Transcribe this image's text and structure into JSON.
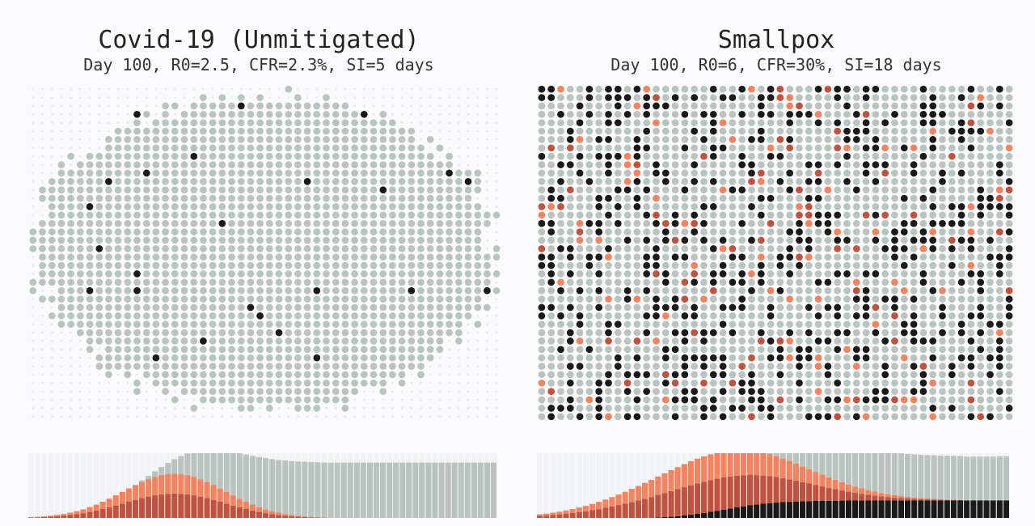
{
  "panels": [
    {
      "title": "Covid-19 (Unmitigated)",
      "subtitle": "Day 100, R0=2.5, CFR=2.3%, SI=5 days",
      "grid": {
        "cols": 50,
        "rows": 40,
        "dead_fraction": 0.015,
        "infected_fraction": 0.0,
        "recovered_fraction": 0.78
      },
      "history": {
        "days": 72,
        "peak_day": 22,
        "infected_peak": 0.72,
        "dead_final": 0.0,
        "recovered_final": 0.9
      }
    },
    {
      "title": "Smallpox",
      "subtitle": "Day 100, R0=6, CFR=30%, SI=18 days",
      "grid": {
        "cols": 50,
        "rows": 40,
        "dead_fraction": 0.3,
        "infected_fraction": 0.08,
        "recovered_fraction": 0.62
      },
      "history": {
        "days": 72,
        "peak_day": 28,
        "infected_peak": 0.95,
        "dead_final": 0.3,
        "recovered_final": 1.0
      }
    }
  ],
  "colors": {
    "susceptible": "#e9ecec",
    "recovered": "#b9c4bf",
    "dead": "#1a1a1a",
    "infected_light": "#f4845f",
    "infected_dark": "#c0533f",
    "background": "#fbfbfd"
  }
}
